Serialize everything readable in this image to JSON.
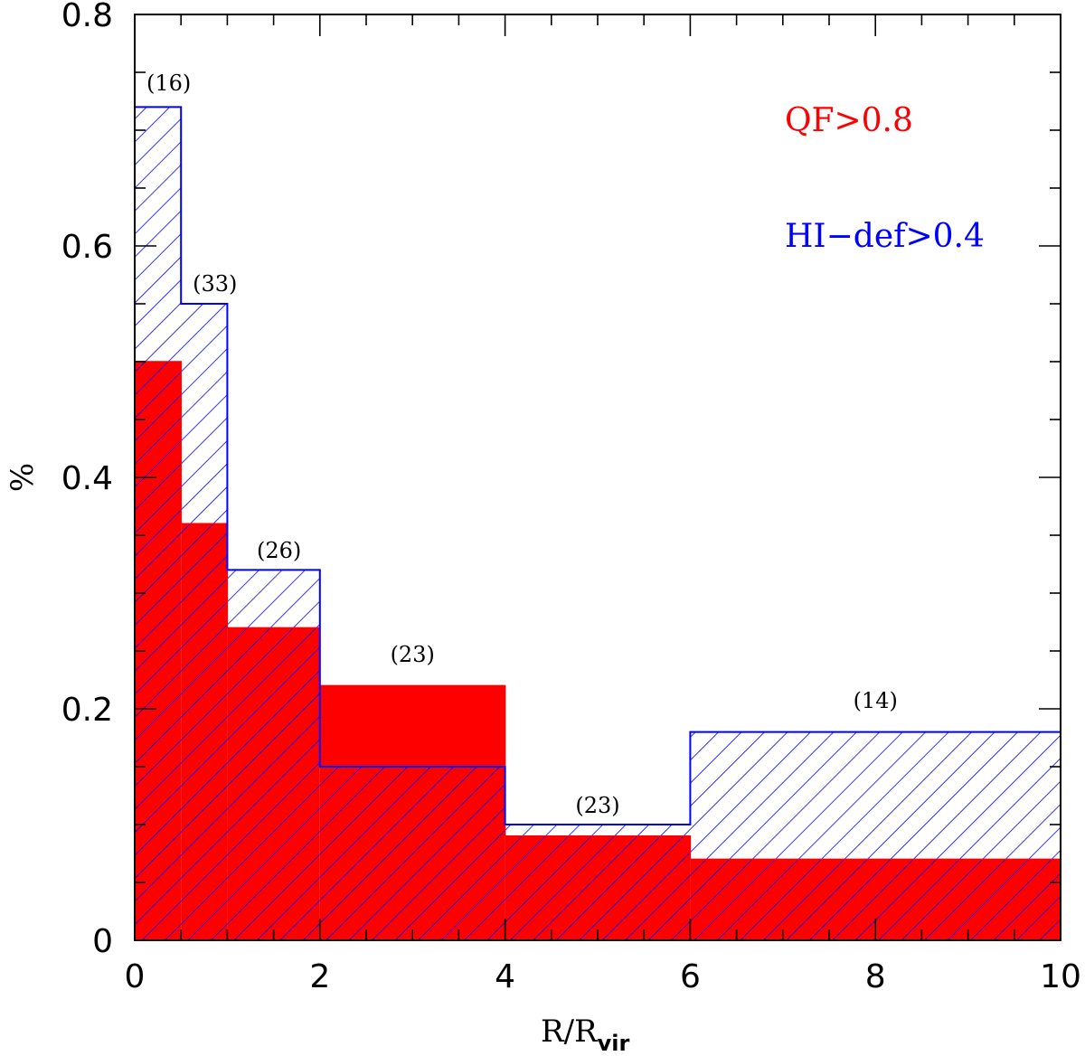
{
  "chart_data": {
    "type": "bar",
    "chart_kind": "step histogram",
    "xlabel": "R/R",
    "xlabel_subscript": "vir",
    "ylabel": "%",
    "xlim": [
      0,
      10
    ],
    "ylim": [
      0,
      0.8
    ],
    "x_ticks": [
      "0",
      "2",
      "4",
      "6",
      "8",
      "10"
    ],
    "y_ticks": [
      "0",
      "0.2",
      "0.4",
      "0.6",
      "0.8"
    ],
    "bins": [
      [
        0,
        0.5
      ],
      [
        0.5,
        1
      ],
      [
        1,
        2
      ],
      [
        2,
        4
      ],
      [
        4,
        6
      ],
      [
        6,
        10
      ]
    ],
    "series": [
      {
        "name": "QF>0.8",
        "color": "#ff0000",
        "style": "solid fill",
        "values": [
          0.5,
          0.36,
          0.27,
          0.22,
          0.09,
          0.07
        ]
      },
      {
        "name": "HI−def>0.4",
        "color": "#0000ff",
        "style": "diagonal hatch",
        "values": [
          0.72,
          0.55,
          0.32,
          0.15,
          0.1,
          0.18
        ]
      }
    ],
    "bin_counts": [
      "(16)",
      "(33)",
      "(26)",
      "(23)",
      "(23)",
      "(14)"
    ],
    "legend_placement": "top-right",
    "grid": false
  }
}
